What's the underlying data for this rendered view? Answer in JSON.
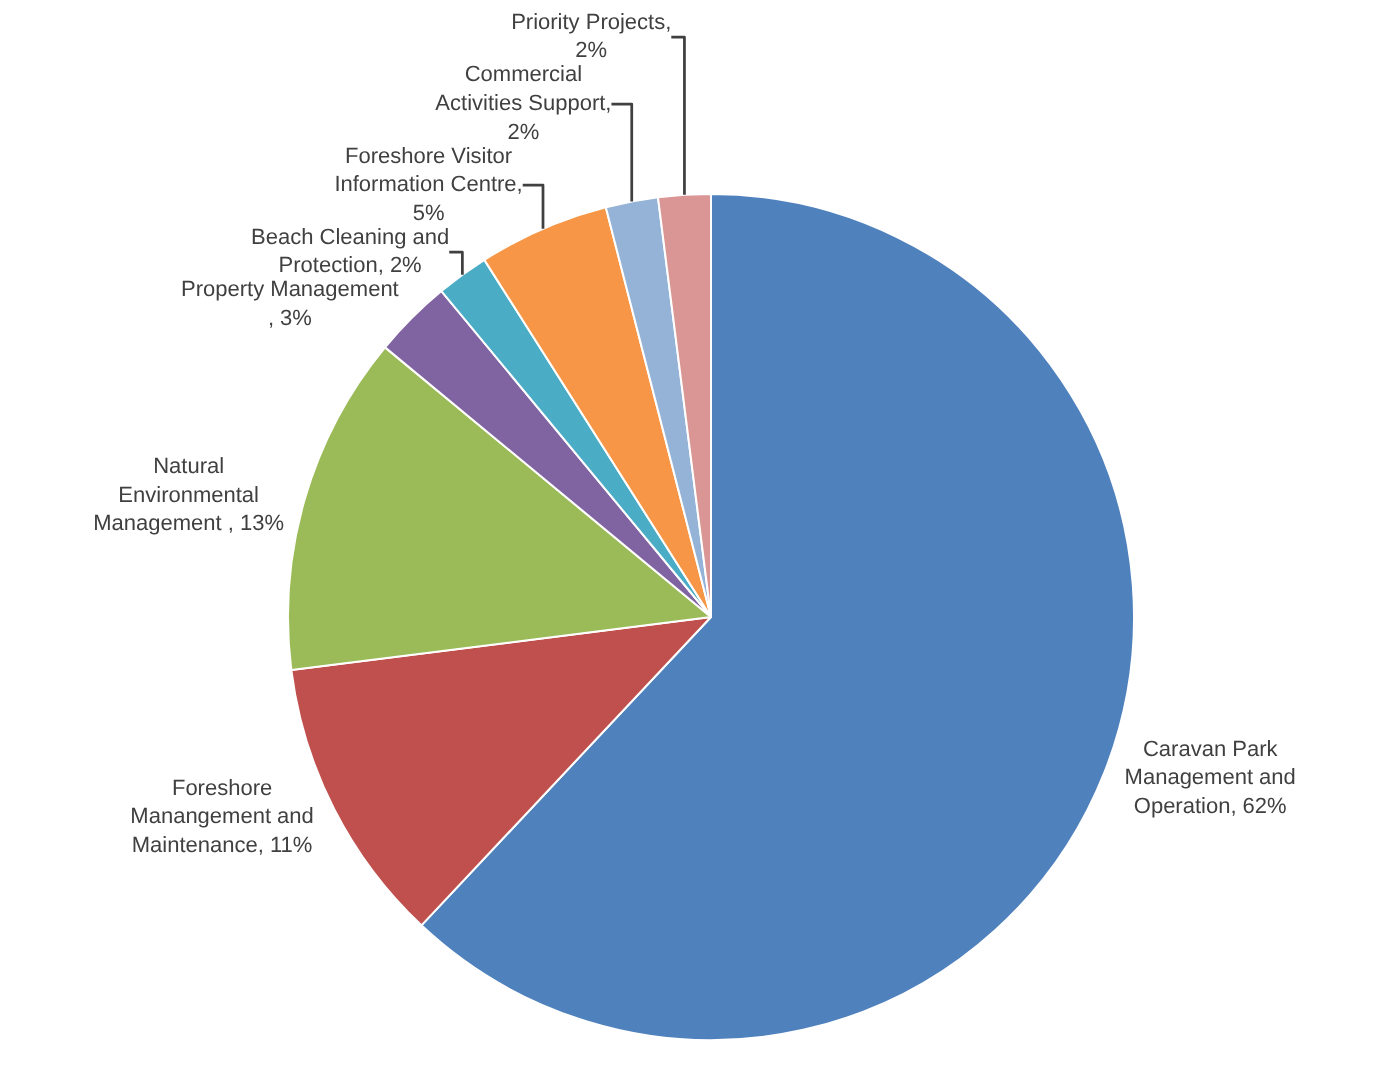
{
  "chart_data": {
    "type": "pie",
    "categories": [
      "Caravan Park Management and Operation, 62%",
      "Foreshore Manangement and Maintenance, 11%",
      "Natural Environmental Management , 13%",
      "Property Management , 3%",
      "Beach Cleaning and Protection, 2%",
      "Foreshore Visitor Information Centre, 5%",
      "Commercial Activities Support, 2%",
      "Priority Projects, 2%"
    ],
    "values": [
      62,
      11,
      13,
      3,
      2,
      5,
      2,
      2
    ],
    "colors": [
      "#4f81bd",
      "#c0504d",
      "#9bbb59",
      "#8064a2",
      "#4bacc6",
      "#f79646",
      "#95b3d7",
      "#d99694"
    ],
    "legend": false
  }
}
